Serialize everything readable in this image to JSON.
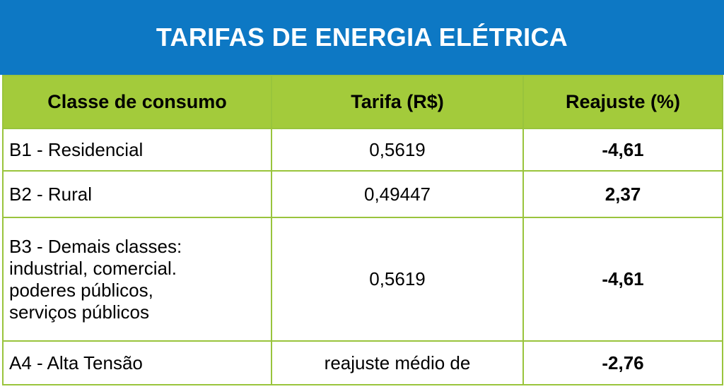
{
  "title": "TARIFAS DE ENERGIA ELÉTRICA",
  "colors": {
    "title_bg": "#0d78c4",
    "header_bg": "#a3cb3b",
    "border": "#99c43c"
  },
  "table": {
    "headers": [
      "Classe de consumo",
      "Tarifa (R$)",
      "Reajuste (%)"
    ],
    "rows": [
      {
        "classe": [
          "B1 - Residencial"
        ],
        "tarifa": "0,5619",
        "reajuste": "-4,61"
      },
      {
        "classe": [
          "B2 - Rural"
        ],
        "tarifa": "0,49447",
        "reajuste": "2,37"
      },
      {
        "classe": [
          "B3 - Demais classes:",
          "industrial, comercial.",
          "poderes públicos,",
          "serviços públicos"
        ],
        "tarifa": "0,5619",
        "reajuste": "-4,61"
      },
      {
        "classe": [
          "A4 - Alta Tensão"
        ],
        "tarifa": "reajuste médio de",
        "reajuste": "-2,76"
      }
    ]
  }
}
